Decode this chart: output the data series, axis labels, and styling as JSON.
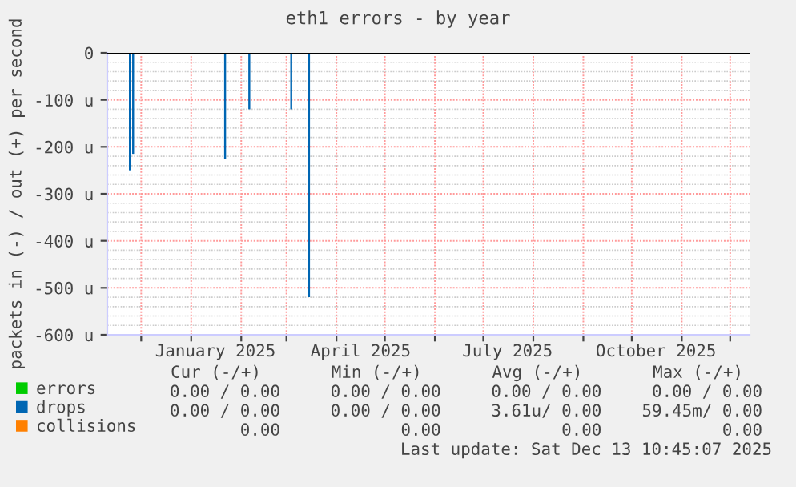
{
  "chart_data": {
    "type": "bar",
    "title": "eth1 errors - by year",
    "ylabel": "packets in (-) / out (+) per second",
    "xlim": [
      "2024-11-10",
      "2025-12-13"
    ],
    "xticks": [
      {
        "value": "2024-12-01",
        "label": null
      },
      {
        "value": "2025-01-01",
        "label": null
      },
      {
        "value": "2025-01-16",
        "label": "January 2025"
      },
      {
        "value": "2025-02-01",
        "label": null
      },
      {
        "value": "2025-03-01",
        "label": null
      },
      {
        "value": "2025-04-01",
        "label": null
      },
      {
        "value": "2025-04-16",
        "label": "April 2025"
      },
      {
        "value": "2025-05-01",
        "label": null
      },
      {
        "value": "2025-06-01",
        "label": null
      },
      {
        "value": "2025-07-01",
        "label": null
      },
      {
        "value": "2025-07-16",
        "label": "July 2025"
      },
      {
        "value": "2025-08-01",
        "label": null
      },
      {
        "value": "2025-09-01",
        "label": null
      },
      {
        "value": "2025-10-01",
        "label": null
      },
      {
        "value": "2025-10-16",
        "label": "October 2025"
      },
      {
        "value": "2025-11-01",
        "label": null
      },
      {
        "value": "2025-12-01",
        "label": null
      }
    ],
    "ylim": [
      -600,
      0
    ],
    "yticks": [
      {
        "value": -600,
        "label": "-600 u"
      },
      {
        "value": -500,
        "label": "-500 u"
      },
      {
        "value": -400,
        "label": "-400 u"
      },
      {
        "value": -300,
        "label": "-300 u"
      },
      {
        "value": -200,
        "label": "-200 u"
      },
      {
        "value": -100,
        "label": "-100 u"
      },
      0
    ],
    "grid": true,
    "legend": "bottom",
    "series": [
      {
        "name": "errors",
        "color": "#00cc00"
      },
      {
        "name": "drops",
        "color": "#0066b3",
        "x": [
          "2024-11-24",
          "2024-11-26",
          "2025-01-22",
          "2025-02-06",
          "2025-03-04",
          "2025-03-15"
        ],
        "values": [
          -250,
          -215,
          -225,
          -120,
          -120,
          -520
        ]
      },
      {
        "name": "collisions",
        "color": "#ff8000"
      }
    ],
    "ref_lines": [
      {
        "axis": "y",
        "value": 0,
        "color": "#000000"
      }
    ],
    "annotations": [
      "Cur (-/+)       Min (-/+)       Avg (-/+)       Max (-/+)",
      "0.00 / 0.00     0.00 / 0.00     0.00 / 0.00     0.00 / 0.00",
      "0.00 / 0.00     0.00 / 0.00     3.61u/ 0.00    59.45m/ 0.00",
      "0.00            0.00            0.00            0.00",
      "Last update: Sat Dec 13 10:45:07 2025"
    ]
  }
}
